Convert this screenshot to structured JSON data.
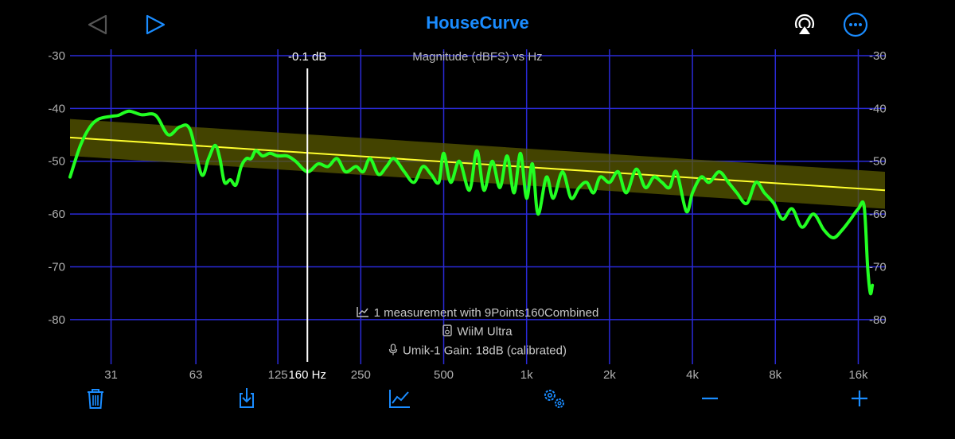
{
  "app": {
    "title": "HouseCurve"
  },
  "chart_data": {
    "type": "line",
    "title": "Magnitude (dBFS) vs Hz",
    "x_scale": "log",
    "xlim": [
      22,
      20000
    ],
    "ylim": [
      -85,
      -30
    ],
    "x_ticks": [
      {
        "value": 31,
        "label": "31"
      },
      {
        "value": 63,
        "label": "63"
      },
      {
        "value": 125,
        "label": "125"
      },
      {
        "value": 250,
        "label": "250"
      },
      {
        "value": 500,
        "label": "500"
      },
      {
        "value": 1000,
        "label": "1k"
      },
      {
        "value": 2000,
        "label": "2k"
      },
      {
        "value": 4000,
        "label": "4k"
      },
      {
        "value": 8000,
        "label": "8k"
      },
      {
        "value": 16000,
        "label": "16k"
      }
    ],
    "y_ticks": [
      -30,
      -40,
      -50,
      -60,
      -70,
      -80
    ],
    "grid": true,
    "cursor": {
      "x": 160,
      "x_label": "160 Hz",
      "y_label": "-0.1 dB"
    },
    "target_curve": {
      "x": [
        22,
        20000
      ],
      "y": [
        -45.5,
        -55.5
      ],
      "tolerance_db": 3.5,
      "color": "#ffff2e"
    },
    "measurement": {
      "color": "#22ff22",
      "x": [
        22,
        24,
        26,
        28,
        31,
        33,
        36,
        40,
        45,
        50,
        55,
        60,
        66,
        70,
        74,
        77,
        80,
        84,
        88,
        92,
        96,
        100,
        104,
        110,
        117,
        125,
        135,
        145,
        160,
        175,
        190,
        205,
        220,
        240,
        255,
        270,
        290,
        310,
        330,
        360,
        390,
        420,
        450,
        480,
        500,
        530,
        570,
        620,
        660,
        700,
        750,
        800,
        850,
        900,
        950,
        1000,
        1050,
        1100,
        1180,
        1250,
        1350,
        1450,
        1550,
        1650,
        1750,
        1850,
        2000,
        2150,
        2300,
        2500,
        2700,
        2900,
        3100,
        3300,
        3500,
        3800,
        4000,
        4300,
        4600,
        5000,
        5400,
        5800,
        6300,
        6800,
        7300,
        7900,
        8500,
        9200,
        10000,
        11000,
        12000,
        13000,
        14000,
        15000,
        16000,
        16800,
        17300,
        17700,
        18000
      ],
      "y": [
        -53,
        -47,
        -43.5,
        -42,
        -41.5,
        -41.3,
        -40.5,
        -41.2,
        -41.3,
        -45,
        -43.5,
        -44,
        -52.5,
        -49.5,
        -47,
        -49.5,
        -54,
        -53.5,
        -54.5,
        -51,
        -49.5,
        -49.5,
        -48,
        -49,
        -48.5,
        -49,
        -49,
        -50,
        -52,
        -50.5,
        -51,
        -49.5,
        -52,
        -51,
        -52,
        -49.5,
        -52.5,
        -51,
        -49.5,
        -52,
        -54,
        -51,
        -52.5,
        -54,
        -48.5,
        -54,
        -50,
        -55.5,
        -48,
        -55.5,
        -50,
        -55,
        -49,
        -56,
        -48.5,
        -57,
        -50.5,
        -60,
        -53,
        -57,
        -52,
        -57,
        -55,
        -54,
        -56,
        -53,
        -54,
        -52,
        -56,
        -51.5,
        -55,
        -53,
        -54,
        -55,
        -52,
        -59.5,
        -56,
        -53,
        -54,
        -52,
        -54,
        -56,
        -58,
        -54,
        -56,
        -58,
        -61,
        -59,
        -62.5,
        -60,
        -63,
        -64.5,
        -63,
        -61,
        -59,
        -58.5,
        -70,
        -75,
        -73.5
      ]
    }
  },
  "info": {
    "line1": "1 measurement with 9Points160Combined",
    "line2": "WiiM Ultra",
    "line3": "Umik-1  Gain: 18dB (calibrated)"
  },
  "icons": {
    "back": "triangle-left-icon",
    "play": "triangle-right-icon",
    "airplay": "airplay-icon",
    "more": "ellipsis-circle-icon",
    "trash": "trash-icon",
    "export": "share-icon",
    "chart": "chart-line-icon",
    "settings": "gears-icon",
    "minus": "minus-icon",
    "plus": "plus-icon"
  },
  "colors": {
    "accent": "#1a8cff",
    "grid": "#2a2ad8",
    "axis_text": "#b0b0b0"
  }
}
